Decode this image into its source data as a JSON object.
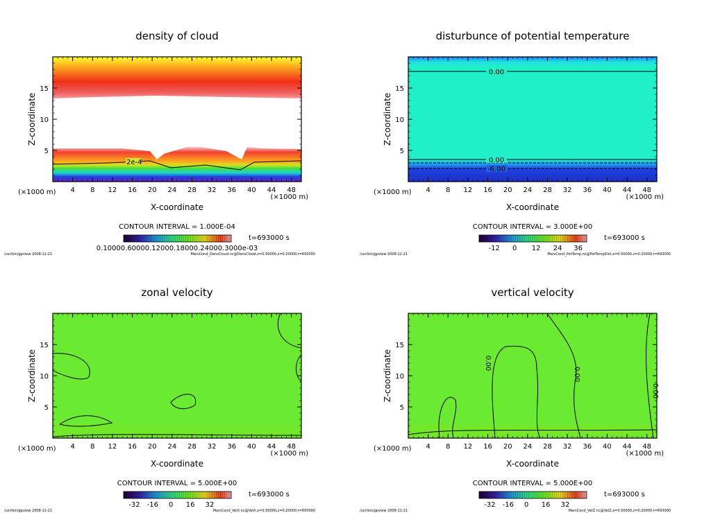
{
  "chart_data": [
    {
      "type": "heatmap",
      "title": "density of cloud",
      "xlabel": "X-coordinate",
      "ylabel": "Z-coordinate",
      "x_unit": "(×1000 m)",
      "y_unit": "(×1000 m)",
      "xlim": [
        0,
        50
      ],
      "ylim": [
        0,
        20
      ],
      "xticks": [
        "4",
        "8",
        "12",
        "16",
        "20",
        "24",
        "28",
        "32",
        "36",
        "40",
        "44",
        "48"
      ],
      "yticks": [
        "5",
        "10",
        "15"
      ],
      "contour_interval": "CONTOUR INTERVAL = 1.000E-04",
      "contour_labels": [
        "2e-4"
      ],
      "colorbar_labels": "0.10000.60000.12000.18000.24000.3000e-03",
      "time": "t=693000 s",
      "footer_left": "/usr/bin/gpview   2008-12-21",
      "footer_right": "MarsCond_DensCloud.nc@DensCloud,x=0:50000,z=0:20000,t=693000"
    },
    {
      "type": "heatmap",
      "title": "disturbunce of potential temperature",
      "xlabel": "X-coordinate",
      "ylabel": "Z-coordinate",
      "x_unit": "(×1000 m)",
      "y_unit": "(×1000 m)",
      "xlim": [
        0,
        50
      ],
      "ylim": [
        0,
        20
      ],
      "xticks": [
        "4",
        "8",
        "12",
        "16",
        "20",
        "24",
        "28",
        "32",
        "36",
        "40",
        "44",
        "48"
      ],
      "yticks": [
        "5",
        "10",
        "15"
      ],
      "contour_interval": "CONTOUR INTERVAL = 3.000E+00",
      "contour_labels": [
        "0.00",
        "0.00",
        "-6.00"
      ],
      "colorbar_labels": [
        "-12",
        "0",
        "12",
        "24",
        "36"
      ],
      "time": "t=693000 s",
      "footer_left": "/usr/bin/gpview   2008-12-21",
      "footer_right": "MarsCond_PotTemp.nc@PotTempDist,x=0:50000,z=0:20000,t=693000"
    },
    {
      "type": "heatmap",
      "title": "zonal velocity",
      "xlabel": "X-coordinate",
      "ylabel": "Z-coordinate",
      "x_unit": "(×1000 m)",
      "y_unit": "(×1000 m)",
      "xlim": [
        0,
        50
      ],
      "ylim": [
        0,
        20
      ],
      "xticks": [
        "4",
        "8",
        "12",
        "16",
        "20",
        "24",
        "28",
        "32",
        "36",
        "40",
        "44",
        "48"
      ],
      "yticks": [
        "5",
        "10",
        "15"
      ],
      "contour_interval": "CONTOUR INTERVAL = 5.000E+00",
      "contour_labels": [],
      "colorbar_labels": [
        "-32",
        "-16",
        "0",
        "16",
        "32"
      ],
      "time": "t=693000 s",
      "footer_left": "/usr/bin/gpview   2008-12-21",
      "footer_right": "MarsCond_VelX.nc@VelX,x=0:50000,z=0:20000,t=693000"
    },
    {
      "type": "heatmap",
      "title": "vertical velocity",
      "xlabel": "X-coordinate",
      "ylabel": "Z-coordinate",
      "x_unit": "(×1000 m)",
      "y_unit": "(×1000 m)",
      "xlim": [
        0,
        50
      ],
      "ylim": [
        0,
        20
      ],
      "xticks": [
        "4",
        "8",
        "12",
        "16",
        "20",
        "24",
        "28",
        "32",
        "36",
        "40",
        "44",
        "48"
      ],
      "yticks": [
        "5",
        "10",
        "15"
      ],
      "contour_interval": "CONTOUR INTERVAL = 5.000E+00",
      "contour_labels": [
        "0.00",
        "0.00",
        "0.00"
      ],
      "colorbar_labels": [
        "-32",
        "-16",
        "0",
        "16",
        "32"
      ],
      "time": "t=693000 s",
      "footer_left": "/usr/bin/gpview   2008-12-21",
      "footer_right": "MarsCond_VelZ.nc@VelZ,x=0:50000,z=0:20000,t=693000"
    }
  ]
}
